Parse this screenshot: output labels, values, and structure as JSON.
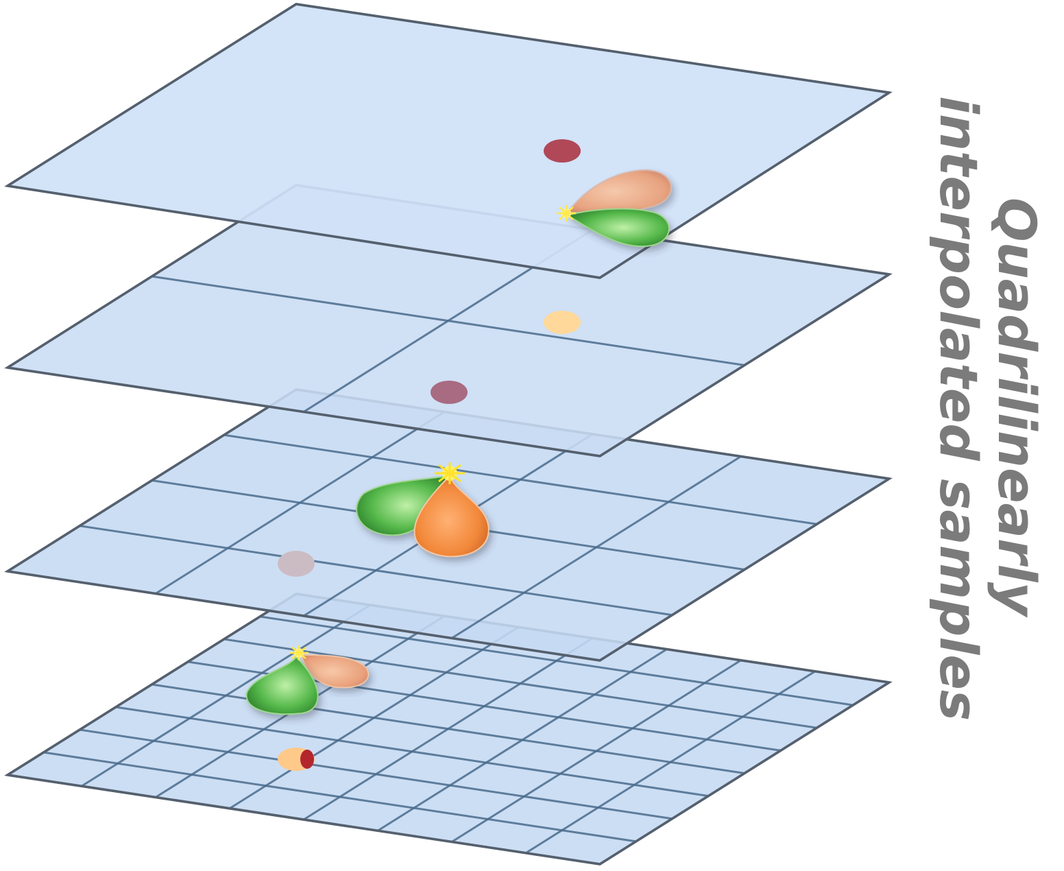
{
  "label": {
    "line1": "Quadrilinearly",
    "line2": "interpolated samples"
  },
  "planes": [
    {
      "id": "level-0",
      "grid_divisions": 1
    },
    {
      "id": "level-1",
      "grid_divisions": 2
    },
    {
      "id": "level-2",
      "grid_divisions": 4
    },
    {
      "id": "level-3",
      "grid_divisions": 8
    }
  ],
  "colors": {
    "plane_fill": "#cfe1f7",
    "plane_edge": "#55606e",
    "grid_line": "#4a6b8c",
    "stick_top": "#b0485a",
    "stick_bottom": "#ffd89a",
    "lobe_orange": "#f08c3c",
    "lobe_green": "#4cae4c",
    "spark": "#ffee33",
    "label_text": "#7b7b7b"
  },
  "icons": [
    "sample-stick-icon",
    "lobe-orange-icon",
    "lobe-green-icon",
    "spark-icon"
  ]
}
